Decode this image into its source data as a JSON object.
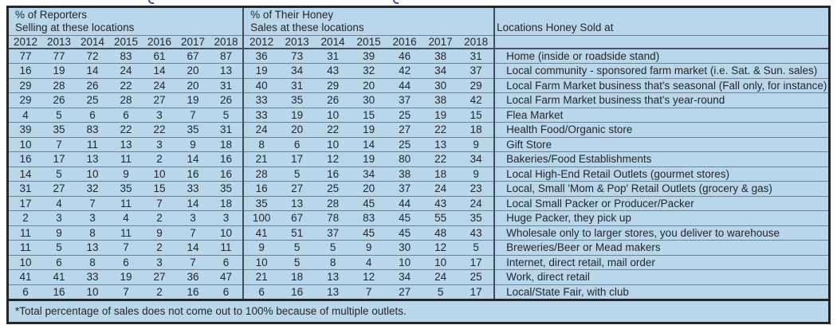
{
  "chart_data": {
    "type": "table",
    "header": {
      "left_group_line1": "% of Reporters",
      "left_group_line2": "Selling at these locations",
      "middle_group_line1": "% of Their Honey",
      "middle_group_line2": "Sales at these locations",
      "right_header": "Locations Honey Sold at",
      "years": [
        "2012",
        "2013",
        "2014",
        "2015",
        "2016",
        "2017",
        "2018"
      ]
    },
    "rows": [
      {
        "location": "Home (inside or roadside stand)",
        "pct_reporters_selling": [
          77,
          77,
          72,
          83,
          61,
          67,
          87
        ],
        "pct_honey_sales": [
          36,
          73,
          31,
          39,
          46,
          38,
          31
        ]
      },
      {
        "location": "Local community - sponsored farm market (i.e. Sat. & Sun. sales)",
        "pct_reporters_selling": [
          16,
          19,
          14,
          24,
          14,
          20,
          13
        ],
        "pct_honey_sales": [
          19,
          34,
          43,
          32,
          42,
          34,
          37
        ]
      },
      {
        "location": "Local Farm Market business that's seasonal (Fall only, for instance)",
        "pct_reporters_selling": [
          29,
          28,
          26,
          22,
          24,
          20,
          31
        ],
        "pct_honey_sales": [
          40,
          31,
          29,
          20,
          44,
          30,
          29
        ]
      },
      {
        "location": "Local Farm Market business that's year-round",
        "pct_reporters_selling": [
          29,
          26,
          25,
          28,
          27,
          19,
          26
        ],
        "pct_honey_sales": [
          33,
          35,
          26,
          30,
          37,
          38,
          42
        ]
      },
      {
        "location": "Flea Market",
        "pct_reporters_selling": [
          4,
          5,
          6,
          6,
          3,
          7,
          5
        ],
        "pct_honey_sales": [
          33,
          19,
          10,
          15,
          25,
          19,
          15
        ]
      },
      {
        "location": "Health Food/Organic store",
        "pct_reporters_selling": [
          39,
          35,
          83,
          22,
          22,
          35,
          31
        ],
        "pct_honey_sales": [
          24,
          20,
          22,
          19,
          27,
          22,
          18
        ]
      },
      {
        "location": "Gift Store",
        "pct_reporters_selling": [
          10,
          7,
          11,
          13,
          3,
          9,
          18
        ],
        "pct_honey_sales": [
          8,
          6,
          10,
          14,
          25,
          13,
          9
        ]
      },
      {
        "location": "Bakeries/Food Establishments",
        "pct_reporters_selling": [
          16,
          17,
          13,
          11,
          2,
          14,
          16
        ],
        "pct_honey_sales": [
          21,
          17,
          12,
          19,
          80,
          22,
          34
        ]
      },
      {
        "location": "Local High-End Retail Outlets (gourmet stores)",
        "pct_reporters_selling": [
          14,
          5,
          10,
          9,
          10,
          16,
          16
        ],
        "pct_honey_sales": [
          28,
          5,
          16,
          34,
          38,
          18,
          9
        ]
      },
      {
        "location": "Local, Small 'Mom & Pop' Retail Outlets (grocery & gas)",
        "pct_reporters_selling": [
          31,
          27,
          32,
          35,
          15,
          33,
          35
        ],
        "pct_honey_sales": [
          16,
          27,
          25,
          20,
          37,
          24,
          23
        ]
      },
      {
        "location": "Local Small Packer or Producer/Packer",
        "pct_reporters_selling": [
          17,
          4,
          7,
          11,
          7,
          14,
          18
        ],
        "pct_honey_sales": [
          35,
          13,
          28,
          45,
          44,
          43,
          24
        ]
      },
      {
        "location": "Huge Packer, they pick up",
        "pct_reporters_selling": [
          2,
          3,
          3,
          4,
          2,
          3,
          3
        ],
        "pct_honey_sales": [
          100,
          67,
          78,
          83,
          45,
          55,
          35
        ]
      },
      {
        "location": "Wholesale only to larger stores, you deliver to warehouse",
        "pct_reporters_selling": [
          11,
          9,
          8,
          11,
          9,
          7,
          10
        ],
        "pct_honey_sales": [
          41,
          51,
          37,
          45,
          45,
          48,
          43
        ]
      },
      {
        "location": "Breweries/Beer or Mead makers",
        "pct_reporters_selling": [
          11,
          5,
          13,
          7,
          2,
          14,
          11
        ],
        "pct_honey_sales": [
          9,
          5,
          5,
          9,
          30,
          12,
          5
        ]
      },
      {
        "location": "Internet, direct retail, mail order",
        "pct_reporters_selling": [
          10,
          6,
          8,
          6,
          3,
          7,
          6
        ],
        "pct_honey_sales": [
          10,
          5,
          8,
          4,
          10,
          10,
          17
        ]
      },
      {
        "location": "Work, direct retail",
        "pct_reporters_selling": [
          41,
          41,
          33,
          19,
          27,
          36,
          47
        ],
        "pct_honey_sales": [
          21,
          18,
          13,
          12,
          34,
          24,
          25
        ]
      },
      {
        "location": "Local/State Fair, with club",
        "pct_reporters_selling": [
          6,
          16,
          10,
          7,
          2,
          16,
          6
        ],
        "pct_honey_sales": [
          6,
          16,
          13,
          7,
          27,
          5,
          17
        ]
      }
    ],
    "footnote": "*Total percentage of sales does not come out to 100% because of multiple outlets."
  },
  "colors": {
    "table_background": "#b9d6ea",
    "outer_border": "#262626",
    "row_line": "#6f8191",
    "section_divider": "#3f4d59",
    "text": "#23282d",
    "cut_off_title_fragments": "#3847c8"
  }
}
